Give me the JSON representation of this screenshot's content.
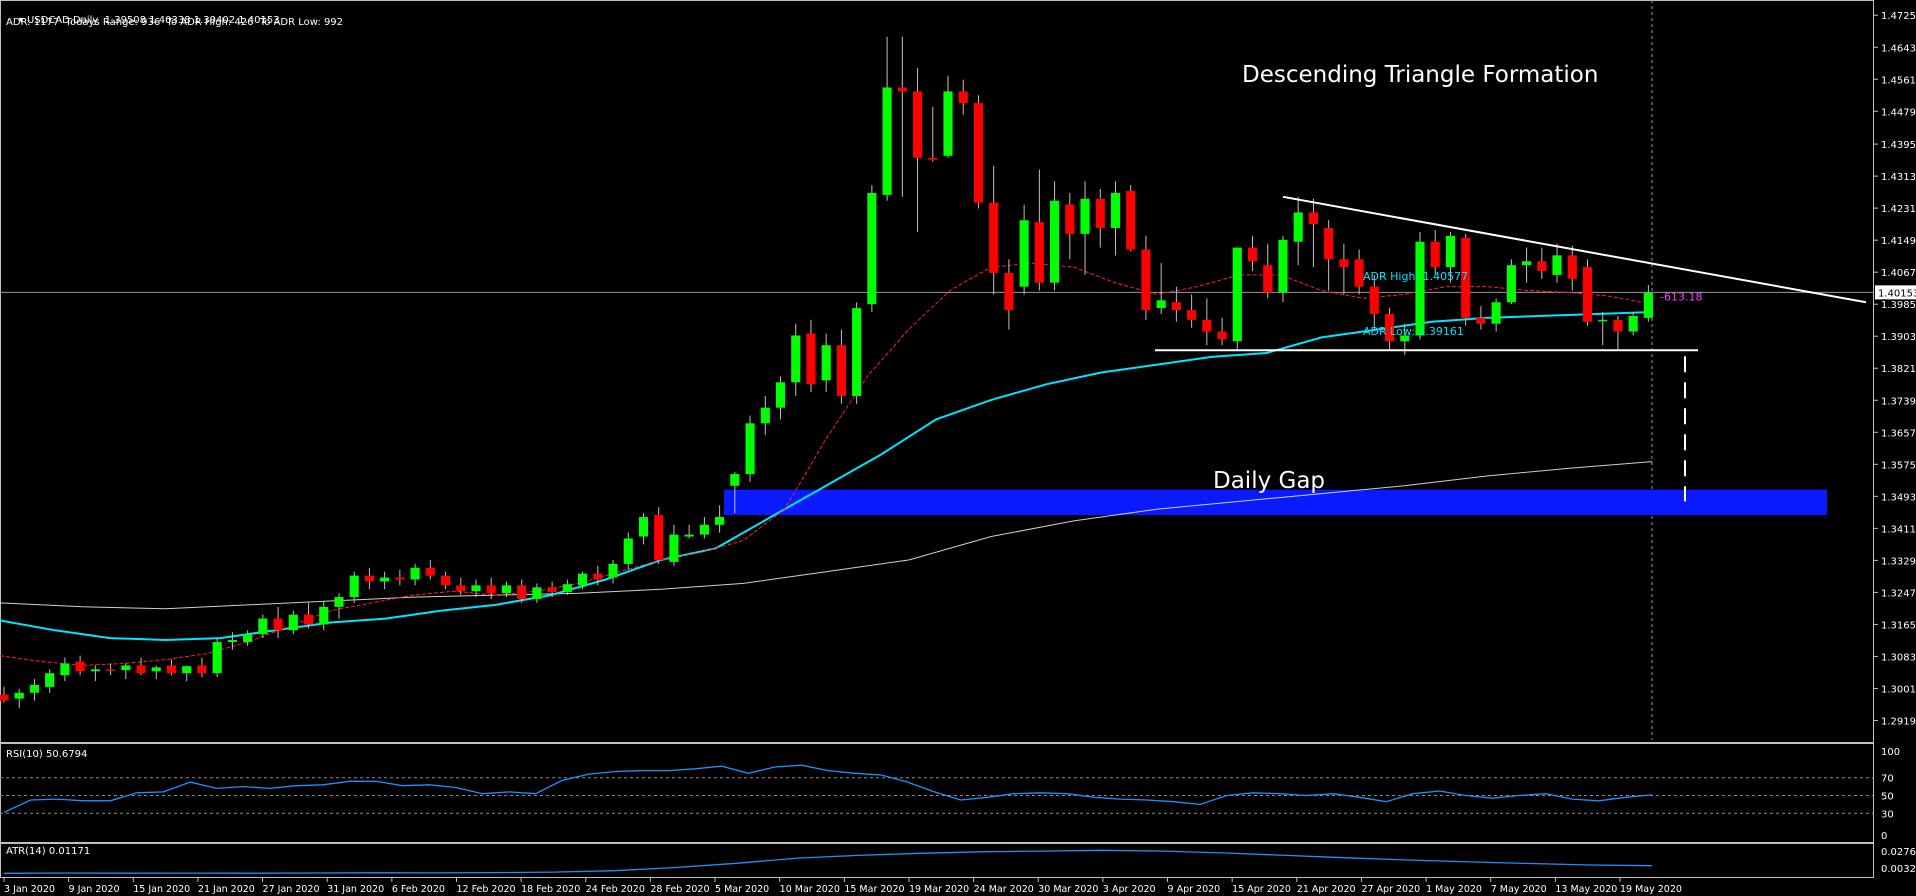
{
  "header": {
    "symbol_line": "USDCAD,Daily  1.39508 1.40338 1.39402 1.40153",
    "adr_line": "ADR: 1177  Todays Range: 936  To ADR High: 426  To ADR Low: 992"
  },
  "annotations": {
    "title": "Descending Triangle Formation",
    "gap_label": "Daily Gap",
    "adr_high": "ADR High: 1.40577",
    "adr_low": "ADR Low: 1.39161",
    "offset": "-613.18"
  },
  "rsi": {
    "label": "RSI(10) 50.6794",
    "levels": [
      "100",
      "70",
      "50",
      "30",
      "0"
    ]
  },
  "atr": {
    "label": "ATR(14) 0.01171",
    "levels": [
      "0.02764",
      "0.00328"
    ]
  },
  "colors": {
    "bull": "#00ff00",
    "bear": "#ff0000",
    "ma_fast": "#ff2020",
    "ma_mid": "#00e5ff",
    "ma_slow": "#d0d0d0",
    "gap": "#0a1aff",
    "rsi": "#1e90ff"
  },
  "chart_data": [
    {
      "type": "candlestick",
      "symbol": "USDCAD",
      "timeframe": "Daily",
      "current_price": 1.40153,
      "current_price_label": "1.40153",
      "ylim": [
        1.2869,
        1.4764
      ],
      "price_axis": [
        "1.47250",
        "1.46430",
        "1.45610",
        "1.44790",
        "1.43950",
        "1.43130",
        "1.42310",
        "1.41490",
        "1.40670",
        "1.39850",
        "1.39030",
        "1.38210",
        "1.37390",
        "1.36570",
        "1.35750",
        "1.34930",
        "1.34110",
        "1.33290",
        "1.32470",
        "1.31650",
        "1.30830",
        "1.30010",
        "1.29190"
      ],
      "date_axis": [
        "3 Jan 2020",
        "9 Jan 2020",
        "15 Jan 2020",
        "21 Jan 2020",
        "27 Jan 2020",
        "31 Jan 2020",
        "6 Feb 2020",
        "12 Feb 2020",
        "18 Feb 2020",
        "24 Feb 2020",
        "28 Feb 2020",
        "5 Mar 2020",
        "10 Mar 2020",
        "15 Mar 2020",
        "19 Mar 2020",
        "24 Mar 2020",
        "30 Mar 2020",
        "3 Apr 2020",
        "9 Apr 2020",
        "15 Apr 2020",
        "21 Apr 2020",
        "27 Apr 2020",
        "1 May 2020",
        "7 May 2020",
        "13 May 2020",
        "19 May 2020"
      ],
      "series": [
        {
          "name": "USDCAD",
          "ohlc": [
            [
              1.2985,
              1.3005,
              1.2965,
              1.297
            ],
            [
              1.2975,
              1.3,
              1.295,
              1.299
            ],
            [
              1.299,
              1.3025,
              1.297,
              1.301
            ],
            [
              1.3005,
              1.305,
              1.299,
              1.304
            ],
            [
              1.3035,
              1.308,
              1.302,
              1.3065
            ],
            [
              1.307,
              1.3085,
              1.3035,
              1.3045
            ],
            [
              1.3045,
              1.306,
              1.302,
              1.305
            ],
            [
              1.305,
              1.3065,
              1.3035,
              1.3048
            ],
            [
              1.3048,
              1.3065,
              1.3025,
              1.306
            ],
            [
              1.306,
              1.308,
              1.3035,
              1.304
            ],
            [
              1.3045,
              1.306,
              1.3025,
              1.3055
            ],
            [
              1.306,
              1.3075,
              1.3035,
              1.304
            ],
            [
              1.304,
              1.306,
              1.302,
              1.3058
            ],
            [
              1.306,
              1.308,
              1.303,
              1.304
            ],
            [
              1.304,
              1.313,
              1.303,
              1.312
            ],
            [
              1.312,
              1.3145,
              1.31,
              1.3125
            ],
            [
              1.312,
              1.315,
              1.311,
              1.314
            ],
            [
              1.314,
              1.319,
              1.313,
              1.318
            ],
            [
              1.318,
              1.321,
              1.313,
              1.315
            ],
            [
              1.315,
              1.32,
              1.314,
              1.319
            ],
            [
              1.319,
              1.322,
              1.3155,
              1.3165
            ],
            [
              1.3165,
              1.3225,
              1.315,
              1.321
            ],
            [
              1.321,
              1.3245,
              1.318,
              1.3235
            ],
            [
              1.3235,
              1.33,
              1.322,
              1.329
            ],
            [
              1.329,
              1.331,
              1.3255,
              1.3275
            ],
            [
              1.3275,
              1.33,
              1.3255,
              1.3285
            ],
            [
              1.3285,
              1.3305,
              1.3265,
              1.328
            ],
            [
              1.328,
              1.332,
              1.3265,
              1.331
            ],
            [
              1.331,
              1.333,
              1.328,
              1.329
            ],
            [
              1.329,
              1.33,
              1.3255,
              1.3265
            ],
            [
              1.3265,
              1.3285,
              1.324,
              1.325
            ],
            [
              1.325,
              1.328,
              1.3235,
              1.3265
            ],
            [
              1.3265,
              1.3285,
              1.323,
              1.3245
            ],
            [
              1.3245,
              1.3275,
              1.3235,
              1.3265
            ],
            [
              1.3265,
              1.328,
              1.322,
              1.323
            ],
            [
              1.323,
              1.327,
              1.322,
              1.326
            ],
            [
              1.326,
              1.3275,
              1.3235,
              1.3248
            ],
            [
              1.3248,
              1.328,
              1.324,
              1.3268
            ],
            [
              1.3265,
              1.33,
              1.3255,
              1.3295
            ],
            [
              1.3295,
              1.3315,
              1.3265,
              1.328
            ],
            [
              1.3285,
              1.333,
              1.327,
              1.332
            ],
            [
              1.332,
              1.34,
              1.3305,
              1.3385
            ],
            [
              1.339,
              1.345,
              1.337,
              1.344
            ],
            [
              1.3445,
              1.3465,
              1.332,
              1.333
            ],
            [
              1.3325,
              1.342,
              1.3315,
              1.3395
            ],
            [
              1.339,
              1.342,
              1.3385,
              1.3395
            ],
            [
              1.3395,
              1.344,
              1.3385,
              1.342
            ],
            [
              1.342,
              1.347,
              1.34,
              1.344
            ],
            [
              1.352,
              1.3555,
              1.345,
              1.355
            ],
            [
              1.355,
              1.37,
              1.353,
              1.368
            ],
            [
              1.368,
              1.375,
              1.365,
              1.372
            ],
            [
              1.372,
              1.38,
              1.369,
              1.3785
            ],
            [
              1.3785,
              1.3935,
              1.375,
              1.3905
            ],
            [
              1.391,
              1.3945,
              1.376,
              1.378
            ],
            [
              1.379,
              1.391,
              1.376,
              1.388
            ],
            [
              1.388,
              1.392,
              1.373,
              1.375
            ],
            [
              1.375,
              1.399,
              1.373,
              1.3975
            ],
            [
              1.3985,
              1.429,
              1.3965,
              1.427
            ],
            [
              1.4265,
              1.467,
              1.425,
              1.454
            ],
            [
              1.454,
              1.467,
              1.426,
              1.453
            ],
            [
              1.453,
              1.459,
              1.417,
              1.436
            ],
            [
              1.436,
              1.449,
              1.435,
              1.4355
            ],
            [
              1.4365,
              1.457,
              1.436,
              1.453
            ],
            [
              1.453,
              1.456,
              1.447,
              1.45
            ],
            [
              1.45,
              1.452,
              1.423,
              1.4245
            ],
            [
              1.4245,
              1.434,
              1.401,
              1.4065
            ],
            [
              1.4065,
              1.41,
              1.392,
              1.397
            ],
            [
              1.403,
              1.424,
              1.401,
              1.42
            ],
            [
              1.4195,
              1.433,
              1.402,
              1.404
            ],
            [
              1.404,
              1.43,
              1.402,
              1.425
            ],
            [
              1.424,
              1.427,
              1.41,
              1.4165
            ],
            [
              1.4165,
              1.43,
              1.406,
              1.4255
            ],
            [
              1.4255,
              1.428,
              1.413,
              1.418
            ],
            [
              1.418,
              1.43,
              1.411,
              1.427
            ],
            [
              1.4275,
              1.429,
              1.412,
              1.4125
            ],
            [
              1.4125,
              1.416,
              1.3945,
              1.397
            ],
            [
              1.3975,
              1.409,
              1.396,
              1.3995
            ],
            [
              1.399,
              1.403,
              1.394,
              1.397
            ],
            [
              1.397,
              1.401,
              1.3925,
              1.3945
            ],
            [
              1.3945,
              1.4,
              1.388,
              1.3915
            ],
            [
              1.3915,
              1.395,
              1.388,
              1.3895
            ],
            [
              1.389,
              1.413,
              1.387,
              1.413
            ],
            [
              1.413,
              1.416,
              1.407,
              1.4095
            ],
            [
              1.4085,
              1.414,
              1.4,
              1.4015
            ],
            [
              1.4015,
              1.416,
              1.399,
              1.415
            ],
            [
              1.4145,
              1.426,
              1.4085,
              1.422
            ],
            [
              1.422,
              1.4255,
              1.408,
              1.419
            ],
            [
              1.418,
              1.42,
              1.402,
              1.41
            ],
            [
              1.41,
              1.414,
              1.401,
              1.408
            ],
            [
              1.41,
              1.4125,
              1.401,
              1.403
            ],
            [
              1.403,
              1.406,
              1.392,
              1.396
            ],
            [
              1.396,
              1.3975,
              1.387,
              1.389
            ],
            [
              1.389,
              1.3935,
              1.3855,
              1.3905
            ],
            [
              1.3905,
              1.417,
              1.3895,
              1.4145
            ],
            [
              1.4145,
              1.4175,
              1.406,
              1.408
            ],
            [
              1.408,
              1.417,
              1.404,
              1.416
            ],
            [
              1.4155,
              1.4165,
              1.393,
              1.395
            ],
            [
              1.395,
              1.398,
              1.392,
              1.3935
            ],
            [
              1.3935,
              1.4,
              1.3915,
              1.399
            ],
            [
              1.399,
              1.41,
              1.3985,
              1.4085
            ],
            [
              1.4085,
              1.413,
              1.404,
              1.4095
            ],
            [
              1.4095,
              1.413,
              1.405,
              1.407
            ],
            [
              1.406,
              1.414,
              1.404,
              1.411
            ],
            [
              1.411,
              1.4135,
              1.402,
              1.405
            ],
            [
              1.408,
              1.41,
              1.393,
              1.394
            ],
            [
              1.3945,
              1.3965,
              1.388,
              1.3945
            ],
            [
              1.3945,
              1.3955,
              1.387,
              1.3915
            ],
            [
              1.3915,
              1.3965,
              1.3905,
              1.3955
            ],
            [
              1.395,
              1.4034,
              1.394,
              1.4015
            ]
          ]
        },
        {
          "name": "fast MA",
          "values": [
            1.3085,
            1.307,
            1.306,
            1.3065,
            1.3075,
            1.309,
            1.312,
            1.316,
            1.32,
            1.322,
            1.324,
            1.325,
            1.324,
            1.325,
            1.327,
            1.33,
            1.333,
            1.335,
            1.338,
            1.346,
            1.364,
            1.38,
            1.392,
            1.402,
            1.408,
            1.409,
            1.408,
            1.404,
            1.401,
            1.403,
            1.406,
            1.406,
            1.402,
            1.4,
            1.401,
            1.403,
            1.403,
            1.402,
            1.4015,
            1.4005,
            1.3985
          ]
        },
        {
          "name": "mid MA",
          "values": [
            1.3175,
            1.315,
            1.313,
            1.3125,
            1.313,
            1.315,
            1.317,
            1.318,
            1.32,
            1.3215,
            1.324,
            1.328,
            1.333,
            1.336,
            1.344,
            1.352,
            1.36,
            1.369,
            1.374,
            1.378,
            1.381,
            1.383,
            1.385,
            1.386,
            1.39,
            1.392,
            1.394,
            1.395,
            1.3955,
            1.396,
            1.3965
          ]
        },
        {
          "name": "slow MA",
          "values": [
            1.322,
            1.321,
            1.3205,
            1.3215,
            1.3225,
            1.3235,
            1.324,
            1.3245,
            1.3255,
            1.327,
            1.33,
            1.333,
            1.339,
            1.343,
            1.346,
            1.348,
            1.35,
            1.352,
            1.3545,
            1.3565,
            1.3582
          ]
        }
      ],
      "drawings": {
        "triangle_upper_line": [
          1.426,
          1.399
        ],
        "triangle_support_level": 1.3867,
        "adr_high": 1.40577,
        "adr_low": 1.39161,
        "gap_zone": [
          1.3445,
          1.351
        ]
      }
    },
    {
      "type": "line",
      "title": "RSI(10) 50.6794",
      "ylim": [
        0,
        100
      ],
      "levels": [
        70,
        50,
        30
      ],
      "values": [
        31,
        45,
        46,
        44,
        44,
        53,
        54,
        65,
        58,
        60,
        58,
        61,
        62,
        66,
        66,
        61,
        62,
        59,
        52,
        54,
        52,
        67,
        74,
        77,
        78,
        78,
        80,
        83,
        75,
        82,
        84,
        78,
        75,
        73,
        65,
        54,
        45,
        48,
        52,
        53,
        52,
        48,
        46,
        45,
        43,
        40,
        50,
        53,
        52,
        50,
        52,
        48,
        43,
        52,
        55,
        50,
        47,
        50,
        52,
        46,
        44,
        48,
        50.7
      ]
    },
    {
      "type": "area",
      "title": "ATR(14) 0.01171",
      "ylim": [
        0,
        0.02764
      ],
      "values": [
        0.0045,
        0.0048,
        0.0046,
        0.0047,
        0.0046,
        0.0048,
        0.005,
        0.0049,
        0.0051,
        0.0056,
        0.007,
        0.01,
        0.014,
        0.019,
        0.0215,
        0.0235,
        0.025,
        0.0256,
        0.0264,
        0.0256,
        0.0238,
        0.0215,
        0.0193,
        0.0172,
        0.0153,
        0.0138,
        0.0124,
        0.0117
      ]
    }
  ]
}
